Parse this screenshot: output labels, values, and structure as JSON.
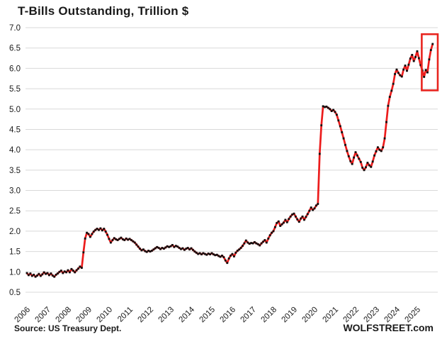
{
  "chart_data": {
    "type": "line",
    "title": "T-Bills Outstanding, Trillion $",
    "xlabel": "",
    "ylabel": "",
    "ylim": [
      0.5,
      7.0
    ],
    "y_ticks": [
      7.0,
      6.5,
      6.0,
      5.5,
      5.0,
      4.5,
      4.0,
      3.5,
      3.0,
      2.5,
      2.0,
      1.5,
      1.0,
      0.5
    ],
    "y_tick_labels": [
      "7.0",
      "6.5",
      "6.0",
      "5.5",
      "5.0",
      "4.5",
      "4.0",
      "3.5",
      "3.0",
      "2.5",
      "2.0",
      "1.5",
      "1.0",
      "0.5"
    ],
    "x_tick_labels": [
      "2006",
      "2007",
      "2008",
      "2009",
      "2010",
      "2011",
      "2012",
      "2013",
      "2014",
      "2015",
      "2016",
      "2017",
      "2018",
      "2019",
      "2020",
      "2021",
      "2022",
      "2023",
      "2024",
      "2025"
    ],
    "x_start_year": 2006,
    "x_interval": "monthly",
    "grid": "horizontal-only",
    "legend": "none",
    "series_name": "T-Bills outstanding, trillion USD",
    "values": [
      0.97,
      0.92,
      0.96,
      0.9,
      0.93,
      0.88,
      0.91,
      0.95,
      0.9,
      0.94,
      0.99,
      0.95,
      0.97,
      0.92,
      0.96,
      0.91,
      0.88,
      0.93,
      0.96,
      1.0,
      1.03,
      0.97,
      1.01,
      0.99,
      1.04,
      0.99,
      1.07,
      1.03,
      0.99,
      1.04,
      1.08,
      1.13,
      1.1,
      1.48,
      1.82,
      1.96,
      1.93,
      1.86,
      1.93,
      1.99,
      2.03,
      2.06,
      2.03,
      2.07,
      2.02,
      2.06,
      1.99,
      1.91,
      1.81,
      1.72,
      1.78,
      1.83,
      1.8,
      1.78,
      1.81,
      1.84,
      1.8,
      1.78,
      1.82,
      1.79,
      1.81,
      1.78,
      1.75,
      1.72,
      1.67,
      1.62,
      1.57,
      1.53,
      1.55,
      1.51,
      1.49,
      1.52,
      1.5,
      1.52,
      1.55,
      1.58,
      1.61,
      1.59,
      1.56,
      1.59,
      1.57,
      1.6,
      1.63,
      1.61,
      1.63,
      1.66,
      1.61,
      1.64,
      1.62,
      1.59,
      1.56,
      1.58,
      1.54,
      1.57,
      1.59,
      1.55,
      1.58,
      1.54,
      1.5,
      1.47,
      1.44,
      1.46,
      1.43,
      1.46,
      1.44,
      1.42,
      1.45,
      1.43,
      1.46,
      1.43,
      1.41,
      1.42,
      1.39,
      1.37,
      1.4,
      1.36,
      1.28,
      1.22,
      1.33,
      1.4,
      1.44,
      1.38,
      1.47,
      1.52,
      1.55,
      1.59,
      1.64,
      1.7,
      1.77,
      1.72,
      1.69,
      1.71,
      1.7,
      1.73,
      1.7,
      1.68,
      1.65,
      1.7,
      1.74,
      1.78,
      1.72,
      1.82,
      1.9,
      1.96,
      2.0,
      2.1,
      2.2,
      2.24,
      2.13,
      2.17,
      2.21,
      2.28,
      2.22,
      2.3,
      2.36,
      2.41,
      2.43,
      2.36,
      2.29,
      2.23,
      2.31,
      2.36,
      2.28,
      2.35,
      2.42,
      2.5,
      2.58,
      2.52,
      2.56,
      2.63,
      2.67,
      3.9,
      4.6,
      5.07,
      5.05,
      5.06,
      5.03,
      5.0,
      4.95,
      4.98,
      4.93,
      4.86,
      4.72,
      4.58,
      4.43,
      4.28,
      4.12,
      3.97,
      3.84,
      3.72,
      3.65,
      3.81,
      3.94,
      3.86,
      3.78,
      3.7,
      3.56,
      3.5,
      3.57,
      3.68,
      3.62,
      3.58,
      3.71,
      3.86,
      3.96,
      4.06,
      4.0,
      3.97,
      4.06,
      4.28,
      4.68,
      5.08,
      5.3,
      5.45,
      5.62,
      5.86,
      5.97,
      5.89,
      5.83,
      5.8,
      5.97,
      6.07,
      5.94,
      6.09,
      6.24,
      6.33,
      6.18,
      6.28,
      6.42,
      6.25,
      6.08,
      5.95,
      5.79,
      5.96,
      5.9,
      6.22,
      6.45,
      6.6
    ],
    "annotation_box": {
      "note": "red rectangle highlighting 2025 debt-ceiling dip and rebound",
      "x_from_year": 2025.22,
      "x_to_year": 2026.0,
      "y_from": 5.46,
      "y_to": 6.84
    },
    "colors": {
      "line": "#ec1c1c",
      "marker": "#111111",
      "grid": "#d9d9d9",
      "annotation": "#e8251f",
      "text": "#1a1a1a"
    }
  },
  "footer": {
    "source": "Source: US Treasury Dept.",
    "brand": "WOLFSTREET.com"
  }
}
